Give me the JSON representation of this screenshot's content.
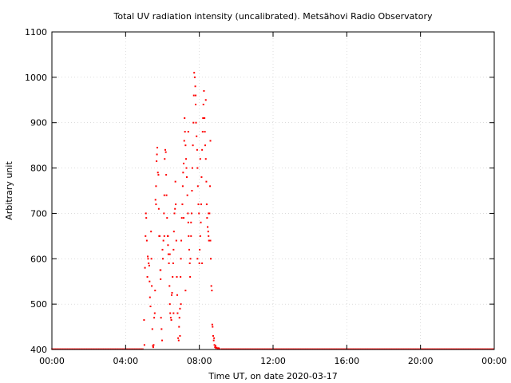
{
  "chart_data": {
    "type": "scatter",
    "title": "Total UV radiation intensity (uncalibrated). Metsähovi Radio Observatory",
    "xlabel": "Time UT, on date 2020-03-17",
    "ylabel": "Arbitrary unit",
    "xlim": [
      0,
      24
    ],
    "ylim": [
      400,
      1100
    ],
    "xticks": [
      0,
      4,
      8,
      12,
      16,
      20,
      24
    ],
    "xtick_labels": [
      "00:00",
      "04:00",
      "08:00",
      "12:00",
      "16:00",
      "20:00",
      "00:00"
    ],
    "yticks": [
      400,
      500,
      600,
      700,
      800,
      900,
      1000,
      1100
    ],
    "ytick_labels": [
      "400",
      "500",
      "600",
      "700",
      "800",
      "900",
      "1000",
      "1100"
    ],
    "grid": true,
    "marker_color": "#ff0000",
    "baseline": {
      "value": 401,
      "x_ranges": [
        [
          0,
          5.0
        ],
        [
          9.2,
          24
        ]
      ]
    },
    "series": [
      {
        "points": [
          [
            5.0,
            465
          ],
          [
            5.02,
            410
          ],
          [
            5.05,
            580
          ],
          [
            5.08,
            650
          ],
          [
            5.1,
            700
          ],
          [
            5.12,
            690
          ],
          [
            5.15,
            640
          ],
          [
            5.18,
            560
          ],
          [
            5.2,
            605
          ],
          [
            5.22,
            600
          ],
          [
            5.25,
            590
          ],
          [
            5.28,
            585
          ],
          [
            5.3,
            550
          ],
          [
            5.32,
            515
          ],
          [
            5.35,
            495
          ],
          [
            5.38,
            660
          ],
          [
            5.4,
            600
          ],
          [
            5.42,
            540
          ],
          [
            5.45,
            445
          ],
          [
            5.48,
            408
          ],
          [
            5.5,
            405
          ],
          [
            5.52,
            410
          ],
          [
            5.55,
            470
          ],
          [
            5.58,
            480
          ],
          [
            5.6,
            530
          ],
          [
            5.62,
            730
          ],
          [
            5.65,
            760
          ],
          [
            5.68,
            815
          ],
          [
            5.7,
            830
          ],
          [
            5.72,
            845
          ],
          [
            5.75,
            790
          ],
          [
            5.78,
            785
          ],
          [
            5.8,
            710
          ],
          [
            5.82,
            650
          ],
          [
            5.85,
            650
          ],
          [
            5.88,
            575
          ],
          [
            5.9,
            555
          ],
          [
            5.92,
            470
          ],
          [
            5.95,
            445
          ],
          [
            5.98,
            420
          ],
          [
            6.0,
            620
          ],
          [
            6.02,
            600
          ],
          [
            6.05,
            640
          ],
          [
            6.08,
            700
          ],
          [
            6.1,
            740
          ],
          [
            6.12,
            820
          ],
          [
            6.15,
            840
          ],
          [
            6.18,
            835
          ],
          [
            6.2,
            785
          ],
          [
            6.22,
            740
          ],
          [
            6.25,
            690
          ],
          [
            6.28,
            650
          ],
          [
            6.3,
            630
          ],
          [
            6.32,
            610
          ],
          [
            6.35,
            590
          ],
          [
            6.38,
            540
          ],
          [
            6.4,
            500
          ],
          [
            6.42,
            480
          ],
          [
            6.45,
            470
          ],
          [
            6.48,
            465
          ],
          [
            6.5,
            520
          ],
          [
            6.52,
            525
          ],
          [
            6.55,
            560
          ],
          [
            6.58,
            590
          ],
          [
            6.6,
            620
          ],
          [
            6.62,
            660
          ],
          [
            6.65,
            700
          ],
          [
            6.68,
            710
          ],
          [
            6.7,
            770
          ],
          [
            6.72,
            720
          ],
          [
            6.75,
            640
          ],
          [
            6.78,
            560
          ],
          [
            6.8,
            520
          ],
          [
            6.82,
            480
          ],
          [
            6.85,
            425
          ],
          [
            6.88,
            420
          ],
          [
            6.9,
            450
          ],
          [
            6.92,
            470
          ],
          [
            6.95,
            490
          ],
          [
            6.98,
            560
          ],
          [
            7.0,
            600
          ],
          [
            7.02,
            640
          ],
          [
            7.05,
            690
          ],
          [
            7.08,
            720
          ],
          [
            7.1,
            760
          ],
          [
            7.12,
            790
          ],
          [
            7.15,
            810
          ],
          [
            7.18,
            860
          ],
          [
            7.2,
            910
          ],
          [
            7.22,
            880
          ],
          [
            7.25,
            850
          ],
          [
            7.28,
            820
          ],
          [
            7.3,
            800
          ],
          [
            7.32,
            780
          ],
          [
            7.35,
            740
          ],
          [
            7.38,
            700
          ],
          [
            7.4,
            680
          ],
          [
            7.42,
            650
          ],
          [
            7.45,
            620
          ],
          [
            7.48,
            590
          ],
          [
            7.5,
            560
          ],
          [
            7.52,
            600
          ],
          [
            7.55,
            650
          ],
          [
            7.58,
            700
          ],
          [
            7.6,
            750
          ],
          [
            7.62,
            800
          ],
          [
            7.65,
            850
          ],
          [
            7.68,
            900
          ],
          [
            7.7,
            960
          ],
          [
            7.72,
            1010
          ],
          [
            7.75,
            1000
          ],
          [
            7.78,
            980
          ],
          [
            7.8,
            940
          ],
          [
            7.82,
            900
          ],
          [
            7.85,
            870
          ],
          [
            7.88,
            840
          ],
          [
            7.9,
            800
          ],
          [
            7.92,
            760
          ],
          [
            7.95,
            720
          ],
          [
            7.98,
            700
          ],
          [
            8.0,
            590
          ],
          [
            8.02,
            620
          ],
          [
            8.05,
            650
          ],
          [
            8.08,
            680
          ],
          [
            8.1,
            720
          ],
          [
            8.12,
            780
          ],
          [
            8.15,
            840
          ],
          [
            8.18,
            880
          ],
          [
            8.2,
            910
          ],
          [
            8.22,
            940
          ],
          [
            8.25,
            970
          ],
          [
            8.28,
            910
          ],
          [
            8.3,
            880
          ],
          [
            8.32,
            850
          ],
          [
            8.35,
            820
          ],
          [
            8.38,
            770
          ],
          [
            8.4,
            720
          ],
          [
            8.42,
            690
          ],
          [
            8.45,
            670
          ],
          [
            8.48,
            660
          ],
          [
            8.5,
            650
          ],
          [
            8.52,
            640
          ],
          [
            8.55,
            700
          ],
          [
            8.58,
            760
          ],
          [
            8.6,
            640
          ],
          [
            8.62,
            600
          ],
          [
            8.65,
            540
          ],
          [
            8.68,
            530
          ],
          [
            8.7,
            455
          ],
          [
            8.72,
            450
          ],
          [
            8.75,
            430
          ],
          [
            8.78,
            420
          ],
          [
            8.8,
            425
          ],
          [
            8.82,
            410
          ],
          [
            8.85,
            405
          ],
          [
            8.88,
            408
          ],
          [
            8.9,
            403
          ],
          [
            8.95,
            404
          ],
          [
            9.0,
            402
          ],
          [
            9.05,
            403
          ],
          [
            9.1,
            401
          ],
          [
            5.9,
            575
          ],
          [
            6.3,
            650
          ],
          [
            6.6,
            480
          ],
          [
            6.95,
            430
          ],
          [
            7.25,
            530
          ],
          [
            7.55,
            680
          ],
          [
            7.8,
            960
          ],
          [
            8.05,
            820
          ],
          [
            8.35,
            950
          ],
          [
            8.6,
            860
          ],
          [
            6.1,
            650
          ],
          [
            7.0,
            500
          ],
          [
            7.4,
            880
          ],
          [
            7.9,
            600
          ],
          [
            8.5,
            700
          ],
          [
            5.65,
            720
          ],
          [
            6.4,
            610
          ],
          [
            7.15,
            690
          ],
          [
            8.15,
            590
          ]
        ]
      }
    ]
  }
}
